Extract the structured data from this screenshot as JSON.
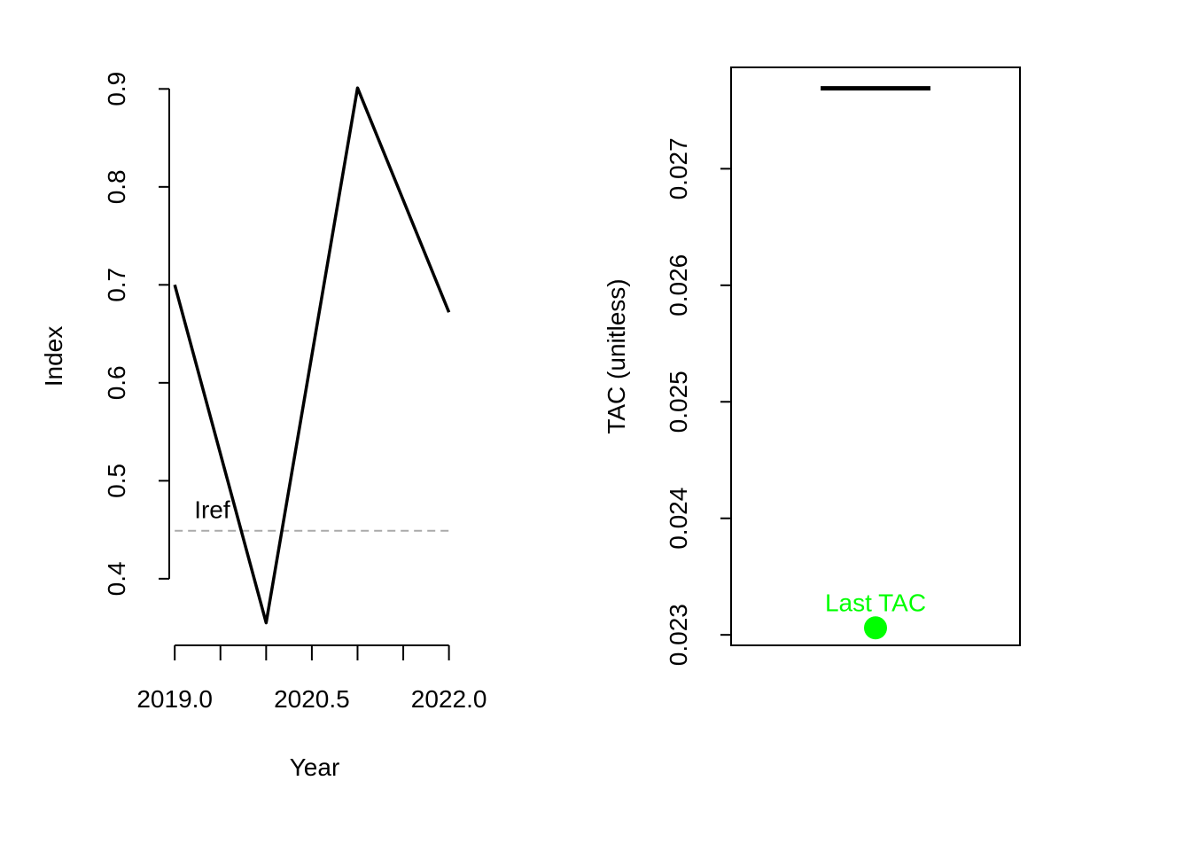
{
  "chart_data": [
    {
      "type": "line",
      "xlabel": "Year",
      "ylabel": "Index",
      "x": [
        2019,
        2020,
        2021,
        2022
      ],
      "series": [
        {
          "values": [
            0.7,
            0.355,
            0.901,
            0.672
          ],
          "color": "#000000"
        }
      ],
      "reference_line": {
        "label": "Iref",
        "y": 0.449,
        "x_from": 2019,
        "x_to": 2022,
        "color": "#aaaaaa",
        "style": "dashed"
      },
      "xlim": [
        2018.94,
        2022.12
      ],
      "ylim": [
        0.332,
        0.922
      ],
      "x_ticks": [
        2019.0,
        2019.5,
        2020.0,
        2020.5,
        2021.0,
        2021.5,
        2022.0
      ],
      "x_tick_labels": [
        {
          "value": 2019.0,
          "label": "2019.0"
        },
        {
          "value": 2020.5,
          "label": "2020.5"
        },
        {
          "value": 2022.0,
          "label": "2022.0"
        }
      ],
      "y_ticks": [
        0.4,
        0.5,
        0.6,
        0.7,
        0.8,
        0.9
      ],
      "y_tick_labels": [
        "0.4",
        "0.5",
        "0.6",
        "0.7",
        "0.8",
        "0.9"
      ],
      "box": false
    },
    {
      "type": "scatter",
      "xlabel": "",
      "ylabel": "TAC (unitless)",
      "tac_line": {
        "y": 0.02769,
        "color": "#000000"
      },
      "last_tac": {
        "label": "Last TAC",
        "y": 0.02306,
        "color": "#00ff00"
      },
      "xlim": [
        0,
        1
      ],
      "ylim": [
        0.02291,
        0.02787
      ],
      "y_ticks": [
        0.023,
        0.024,
        0.025,
        0.026,
        0.027
      ],
      "y_tick_labels": [
        "0.023",
        "0.024",
        "0.025",
        "0.026",
        "0.027"
      ],
      "box": true
    }
  ]
}
